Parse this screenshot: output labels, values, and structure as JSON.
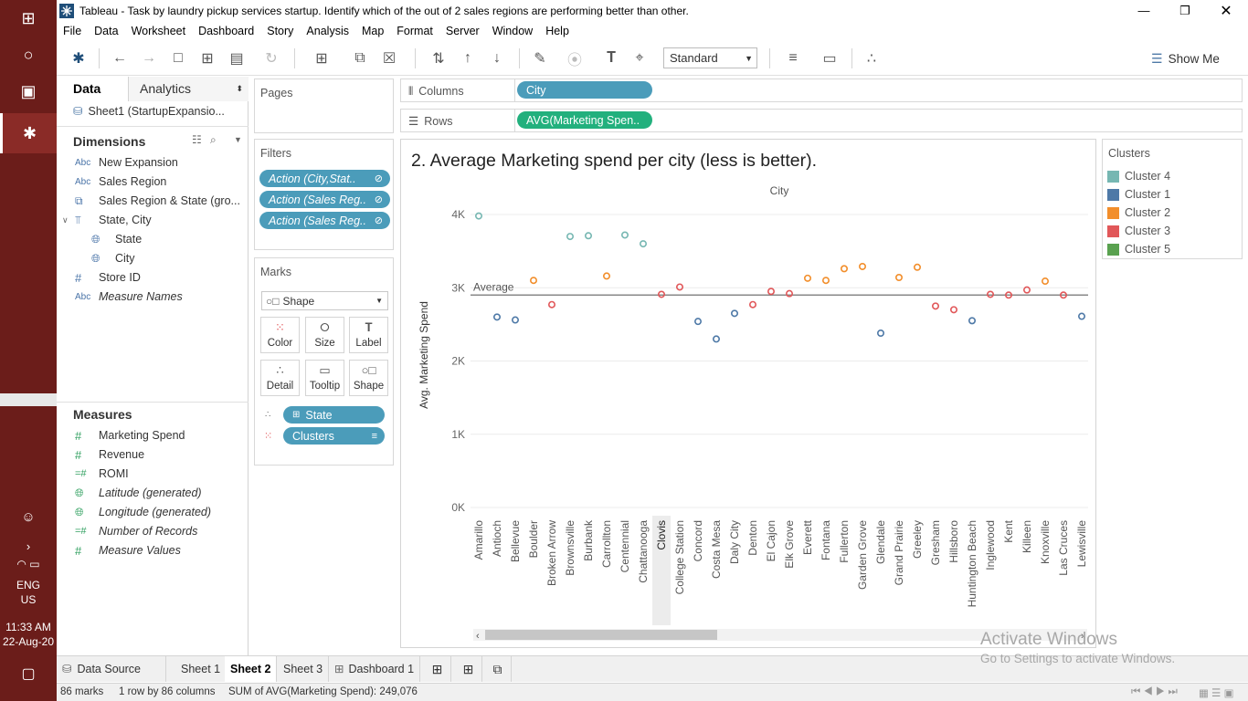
{
  "taskbar": {
    "lang_line1": "ENG",
    "lang_line2": "US",
    "time": "11:33 AM",
    "date": "22-Aug-20"
  },
  "window": {
    "title": "Tableau - Task by laundry pickup services startup. Identify which of the out of 2  sales regions are performing better than other."
  },
  "menu": [
    "File",
    "Data",
    "Worksheet",
    "Dashboard",
    "Story",
    "Analysis",
    "Map",
    "Format",
    "Server",
    "Window",
    "Help"
  ],
  "toolbar": {
    "fit_value": "Standard",
    "show_me_label": "Show Me"
  },
  "data_pane": {
    "tab_data": "Data",
    "tab_analytics": "Analytics",
    "data_source": "Sheet1 (StartupExpansio...",
    "dimensions_title": "Dimensions",
    "dimensions": [
      {
        "type": "Abc",
        "label": "New Expansion"
      },
      {
        "type": "Abc",
        "label": "Sales Region"
      },
      {
        "type": "group",
        "label": "Sales Region & State (gro..."
      },
      {
        "type": "hier",
        "label": "State, City"
      },
      {
        "type": "geo",
        "label": "State"
      },
      {
        "type": "geo",
        "label": "City"
      },
      {
        "type": "#",
        "label": "Store ID"
      },
      {
        "type": "Abc",
        "label": "Measure Names"
      }
    ],
    "measures_title": "Measures",
    "measures": [
      {
        "type": "#",
        "label": "Marketing Spend"
      },
      {
        "type": "#",
        "label": "Revenue"
      },
      {
        "type": "=#",
        "label": "ROMI"
      },
      {
        "type": "geo",
        "label": "Latitude (generated)"
      },
      {
        "type": "geo",
        "label": "Longitude (generated)"
      },
      {
        "type": "=#",
        "label": "Number of Records"
      },
      {
        "type": "#",
        "label": "Measure Values"
      }
    ]
  },
  "pages": {
    "title": "Pages"
  },
  "filters": {
    "title": "Filters",
    "items": [
      "Action (City,Stat..",
      "Action (Sales Reg..",
      "Action (Sales Reg.."
    ]
  },
  "marks": {
    "title": "Marks",
    "type": "Shape",
    "buttons": [
      "Color",
      "Size",
      "Label",
      "Detail",
      "Tooltip",
      "Shape"
    ],
    "pills": [
      "State",
      "Clusters"
    ]
  },
  "shelves": {
    "columns_label": "Columns",
    "columns_pill": "City",
    "rows_label": "Rows",
    "rows_pill": "AVG(Marketing Spen.."
  },
  "view": {
    "title": "2. Average Marketing spend per city (less is better)."
  },
  "legend": {
    "title": "Clusters",
    "items": [
      {
        "label": "Cluster 4",
        "color": "#76b7b2"
      },
      {
        "label": "Cluster 1",
        "color": "#4e79a7"
      },
      {
        "label": "Cluster 2",
        "color": "#f28e2b"
      },
      {
        "label": "Cluster 3",
        "color": "#e15759"
      },
      {
        "label": "Cluster 5",
        "color": "#59a14f"
      }
    ]
  },
  "chart_data": {
    "type": "scatter",
    "title": "City",
    "ylabel": "Avg. Marketing Spend",
    "ylim": [
      0,
      4000
    ],
    "yticks": [
      {
        "value": 0,
        "label": "0K"
      },
      {
        "value": 1000,
        "label": "1K"
      },
      {
        "value": 2000,
        "label": "2K"
      },
      {
        "value": 3000,
        "label": "3K"
      },
      {
        "value": 4000,
        "label": "4K"
      }
    ],
    "reference_line": {
      "label": "Average",
      "value": 2900
    },
    "highlighted_category": "Clovis",
    "categories": [
      "Amarillo",
      "Antioch",
      "Bellevue",
      "Boulder",
      "Broken Arrow",
      "Brownsville",
      "Burbank",
      "Carrollton",
      "Centennial",
      "Chattanooga",
      "Clovis",
      "College Station",
      "Concord",
      "Costa Mesa",
      "Daly City",
      "Denton",
      "El Cajon",
      "Elk Grove",
      "Everett",
      "Fontana",
      "Fullerton",
      "Garden Grove",
      "Glendale",
      "Grand Prairie",
      "Greeley",
      "Gresham",
      "Hillsboro",
      "Huntington Beach",
      "Inglewood",
      "Kent",
      "Killeen",
      "Knoxville",
      "Las Cruces",
      "Lewisville"
    ],
    "values": [
      3980,
      2600,
      2560,
      3100,
      2770,
      3700,
      3710,
      3160,
      3720,
      3600,
      2910,
      3010,
      2540,
      2300,
      2650,
      2770,
      2950,
      2920,
      3130,
      3100,
      3260,
      3290,
      2380,
      3140,
      3280,
      2750,
      2700,
      2550,
      2910,
      2900,
      2970,
      3090,
      2900,
      2610
    ],
    "clusters": [
      "Cluster 4",
      "Cluster 1",
      "Cluster 1",
      "Cluster 2",
      "Cluster 3",
      "Cluster 4",
      "Cluster 4",
      "Cluster 2",
      "Cluster 4",
      "Cluster 4",
      "Cluster 3",
      "Cluster 3",
      "Cluster 1",
      "Cluster 1",
      "Cluster 1",
      "Cluster 3",
      "Cluster 3",
      "Cluster 3",
      "Cluster 2",
      "Cluster 2",
      "Cluster 2",
      "Cluster 2",
      "Cluster 1",
      "Cluster 2",
      "Cluster 2",
      "Cluster 3",
      "Cluster 3",
      "Cluster 1",
      "Cluster 3",
      "Cluster 3",
      "Cluster 3",
      "Cluster 2",
      "Cluster 3",
      "Cluster 1"
    ]
  },
  "sheet_tabs": {
    "data_source": "Data Source",
    "tabs": [
      "Sheet 1",
      "Sheet 2",
      "Sheet 3",
      "Dashboard 1"
    ],
    "active": "Sheet 2"
  },
  "status": {
    "marks": "86 marks",
    "dims": "1 row by 86 columns",
    "sum": "SUM of AVG(Marketing Spend): 249,076"
  },
  "watermark": {
    "line1": "Activate Windows",
    "line2": "Go to Settings to activate Windows."
  }
}
